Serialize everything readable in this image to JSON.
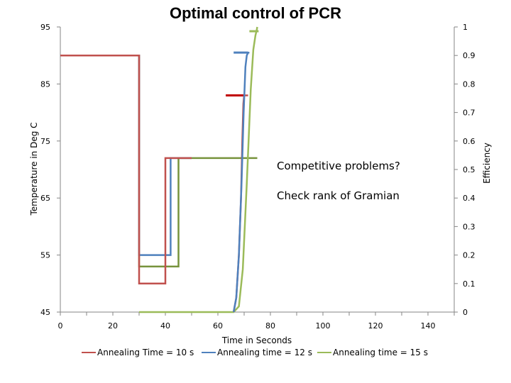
{
  "chart_data": {
    "type": "line",
    "title": "Optimal control of PCR",
    "xlabel": "Time in Seconds",
    "ylabel": "Temperature in Deg C",
    "y2label": "Efficiency",
    "xlim": [
      0,
      150
    ],
    "ylim": [
      45,
      95
    ],
    "y2lim": [
      0,
      1
    ],
    "xticks": [
      0,
      20,
      40,
      60,
      80,
      100,
      120,
      140
    ],
    "yticks": [
      45,
      55,
      65,
      75,
      85,
      95
    ],
    "y2ticks": [
      0,
      0.1,
      0.2,
      0.3,
      0.4,
      0.5,
      0.6,
      0.7,
      0.8,
      0.9,
      1
    ],
    "annotations": [
      "Competitive problems?",
      "Check rank of Gramian"
    ],
    "series": [
      {
        "name": "Annealing Time = 10 s",
        "color": "#c0504d",
        "temperature": {
          "x": [
            0,
            30,
            30,
            40,
            40,
            50
          ],
          "y": [
            90,
            90,
            50,
            50,
            72,
            72
          ]
        },
        "efficiency": {
          "x": [
            66,
            67,
            68,
            68.8,
            69.3,
            69.7,
            70,
            70.5,
            71.5
          ],
          "y": [
            0,
            0.05,
            0.2,
            0.4,
            0.6,
            0.73,
            0.76,
            0.76,
            0.76
          ]
        }
      },
      {
        "name": "Annealing time = 12 s",
        "color": "#4f81bd",
        "temperature": {
          "x": [
            0,
            30,
            30,
            42,
            42,
            50
          ],
          "y": [
            90,
            90,
            55,
            55,
            72,
            72
          ]
        },
        "efficiency": {
          "x": [
            66,
            67,
            68,
            69,
            69.8,
            70.5,
            71,
            71.5,
            72
          ],
          "y": [
            0,
            0.05,
            0.2,
            0.45,
            0.7,
            0.86,
            0.9,
            0.91,
            0.91
          ]
        }
      },
      {
        "name": "Annealing time = 15 s",
        "color": "#9bbb59",
        "temperature": {
          "x": [
            0,
            30,
            30,
            45,
            45,
            75
          ],
          "y": [
            90,
            90,
            53,
            53,
            72,
            72
          ]
        },
        "efficiency": {
          "x": [
            30,
            66,
            68,
            69.5,
            71,
            72.5,
            73.5,
            74.3,
            74.8,
            75
          ],
          "y": [
            0,
            0,
            0.02,
            0.15,
            0.45,
            0.78,
            0.92,
            0.97,
            0.99,
            1
          ]
        }
      }
    ],
    "temperature_line_color": "#77933c"
  }
}
